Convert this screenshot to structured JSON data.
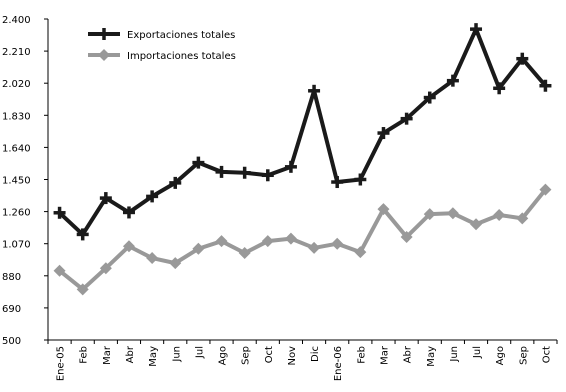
{
  "chart_data": {
    "type": "line",
    "categories": [
      "Ene-05",
      "Feb",
      "Mar",
      "Abr",
      "May",
      "Jun",
      "Jul",
      "Ago",
      "Sep",
      "Oct",
      "Nov",
      "Dic",
      "Ene-06",
      "Feb",
      "Mar",
      "Abr",
      "May",
      "Jun",
      "Jul",
      "Ago",
      "Sep",
      "Oct"
    ],
    "series": [
      {
        "name": "Exportaciones totales",
        "color": "#1a1a1a",
        "marker": "cross",
        "values": [
          1253,
          1125,
          1340,
          1255,
          1350,
          1430,
          1550,
          1495,
          1490,
          1475,
          1525,
          1975,
          1435,
          1450,
          1725,
          1810,
          1935,
          2035,
          2340,
          1990,
          2165,
          2005
        ]
      },
      {
        "name": "Importaciones totales",
        "color": "#999999",
        "marker": "diamond",
        "values": [
          910,
          800,
          925,
          1055,
          985,
          955,
          1040,
          1085,
          1015,
          1085,
          1100,
          1045,
          1070,
          1020,
          1275,
          1110,
          1245,
          1250,
          1185,
          1240,
          1220,
          1390
        ]
      }
    ],
    "y_ticks": [
      "2.400",
      "2.210",
      "2.020",
      "1.830",
      "1.640",
      "1.450",
      "1.260",
      "1.070",
      "880",
      "690",
      "500"
    ],
    "ylim": [
      500,
      2400
    ],
    "legend_position": "top-left",
    "grid": false
  }
}
